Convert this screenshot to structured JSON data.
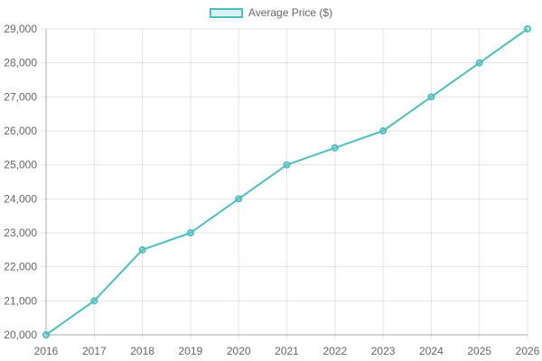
{
  "chart_data": {
    "type": "line",
    "x": [
      "2016",
      "2017",
      "2018",
      "2019",
      "2020",
      "2021",
      "2022",
      "2023",
      "2024",
      "2025",
      "2026"
    ],
    "series": [
      {
        "name": "Average Price ($)",
        "values": [
          20000,
          21000,
          22500,
          23000,
          24000,
          25000,
          25500,
          26000,
          27000,
          28000,
          29000
        ],
        "color": "#4bc0c0",
        "fill": "rgba(75, 192, 192, 0.2)"
      }
    ],
    "ylim": [
      20000,
      29000
    ],
    "yticks": [
      "20,000",
      "21,000",
      "22,000",
      "23,000",
      "24,000",
      "25,000",
      "26,000",
      "27,000",
      "28,000",
      "29,000"
    ],
    "legend_position": "top",
    "grid": true
  }
}
